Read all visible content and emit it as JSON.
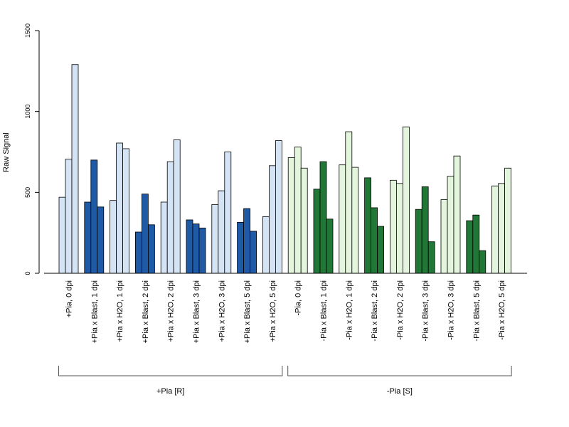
{
  "chart_data": {
    "type": "bar",
    "ylabel": "Raw Signal",
    "ylim": [
      0,
      1500
    ],
    "yticks": [
      0,
      500,
      1000,
      1500
    ],
    "grid": false,
    "legend": "none",
    "categories": [
      "+Pia, 0 dpi",
      "+Pia x Blast, 1 dpi",
      "+Pia x H2O, 1 dpi",
      "+Pia x Blast, 2 dpi",
      "+Pia x H2O, 2 dpi",
      "+Pia x Blast, 3 dpi",
      "+Pia x H2O, 3 dpi",
      "+Pia x Blast, 5 dpi",
      "+Pia x H2O, 5 dpi",
      "-Pia, 0 dpi",
      "-Pia x Blast, 1 dpi",
      "-Pia x H2O, 1 dpi",
      "-Pia x Blast, 2 dpi",
      "-Pia x H2O, 2 dpi",
      "-Pia x Blast, 3 dpi",
      "-Pia x H2O, 3 dpi",
      "-Pia x Blast, 5 dpi",
      "-Pia x H2O, 5 dpi"
    ],
    "values": [
      [
        470,
        705,
        1290
      ],
      [
        440,
        700,
        410
      ],
      [
        450,
        805,
        770
      ],
      [
        255,
        490,
        300
      ],
      [
        440,
        690,
        825
      ],
      [
        330,
        305,
        280
      ],
      [
        425,
        510,
        750
      ],
      [
        315,
        400,
        260
      ],
      [
        350,
        665,
        820
      ],
      [
        715,
        780,
        650
      ],
      [
        520,
        690,
        335
      ],
      [
        670,
        875,
        655
      ],
      [
        590,
        405,
        290
      ],
      [
        575,
        555,
        905
      ],
      [
        395,
        535,
        195
      ],
      [
        455,
        600,
        725
      ],
      [
        325,
        360,
        140
      ],
      [
        540,
        555,
        650
      ]
    ],
    "bar_colors": [
      "#d5e4f5",
      "#1e5aa6",
      "#e3f6dd",
      "#217836"
    ],
    "bar_color_index": [
      0,
      1,
      0,
      1,
      0,
      1,
      0,
      1,
      0,
      2,
      3,
      2,
      3,
      2,
      3,
      2,
      3,
      2
    ],
    "groups": [
      {
        "label": "+Pia [R]",
        "from": 0,
        "to": 8
      },
      {
        "label": "-Pia [S]",
        "from": 9,
        "to": 17
      }
    ]
  }
}
